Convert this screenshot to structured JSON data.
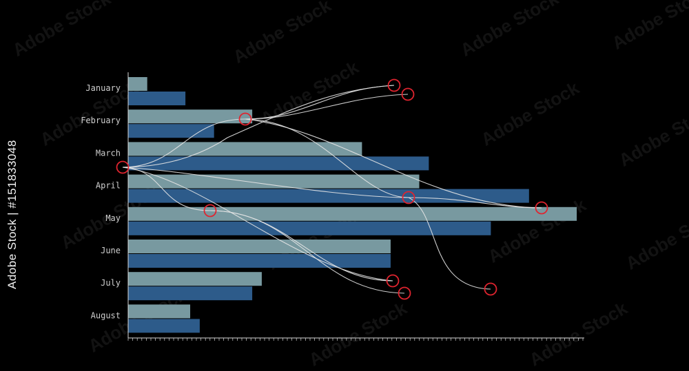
{
  "watermark": {
    "text": "Adobe Stock",
    "id_text": "Adobe Stock | #151833048"
  },
  "colors": {
    "background": "#000000",
    "series_light": "#7899a0",
    "series_dark": "#2d5b8a",
    "axis": "#d9d9d9",
    "label": "#cfcfcf",
    "curve": "#e6e6e6",
    "node": "#e0242f"
  },
  "chart_data": {
    "type": "bar",
    "orientation": "horizontal",
    "categories": [
      "January",
      "February",
      "March",
      "April",
      "May",
      "June",
      "July",
      "August"
    ],
    "series": [
      {
        "values": [
          4,
          26,
          49,
          61,
          94,
          55,
          28,
          13
        ]
      },
      {
        "values": [
          12,
          18,
          63,
          84,
          76,
          55,
          26,
          15
        ]
      }
    ],
    "xlim": [
      0,
      95
    ],
    "x_ticks_visible": false,
    "grid": false,
    "legend": false,
    "overlay": {
      "description_free": true,
      "curves": "network of white connector curves with red circular nodes"
    }
  }
}
